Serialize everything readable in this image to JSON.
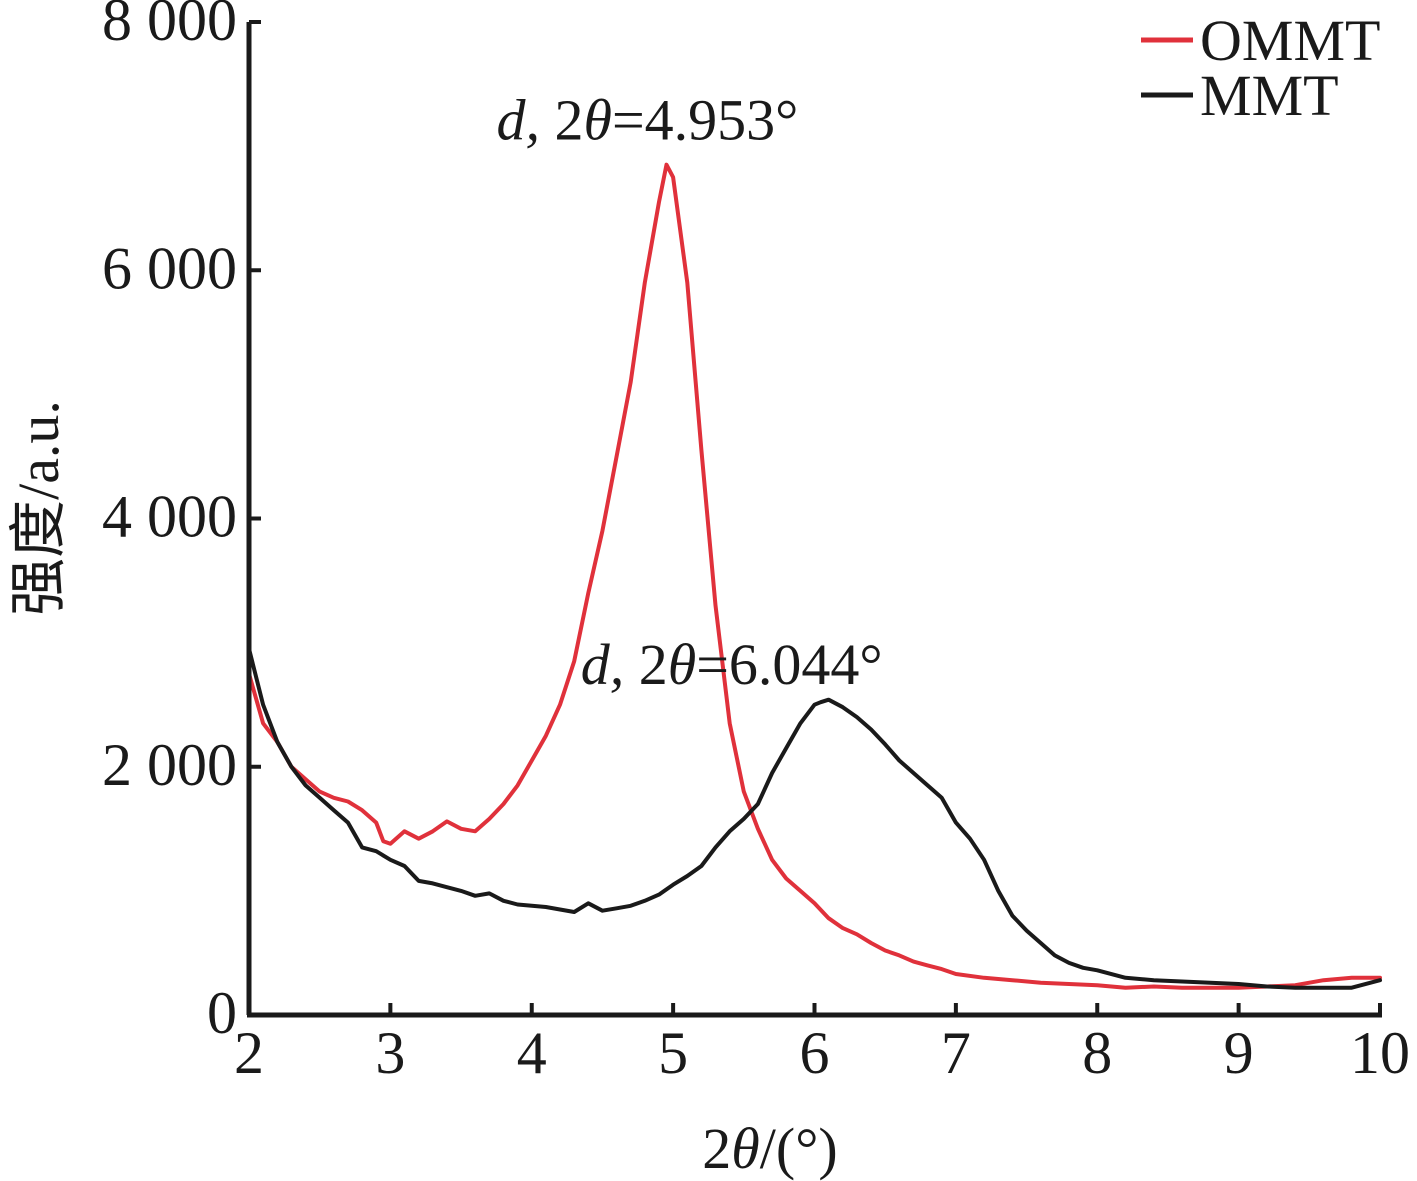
{
  "chart_data": {
    "type": "line",
    "xlabel": "2θ/(°)",
    "ylabel": "强度/a.u.",
    "xlim": [
      2,
      10
    ],
    "ylim": [
      0,
      8000
    ],
    "x_ticks": [
      2,
      3,
      4,
      5,
      6,
      7,
      8,
      9,
      10
    ],
    "x_tick_labels": [
      "2",
      "3",
      "4",
      "5",
      "6",
      "7",
      "8",
      "9",
      "10"
    ],
    "y_ticks": [
      0,
      2000,
      4000,
      6000,
      8000
    ],
    "y_tick_labels": [
      "0",
      "2 000",
      "4 000",
      "6 000",
      "8 000"
    ],
    "grid": false,
    "legend_position": "top-right",
    "series": [
      {
        "name": "OMMT",
        "color": "#e0313b",
        "points": [
          [
            2.0,
            2750
          ],
          [
            2.1,
            2350
          ],
          [
            2.2,
            2200
          ],
          [
            2.3,
            2000
          ],
          [
            2.4,
            1900
          ],
          [
            2.5,
            1800
          ],
          [
            2.6,
            1750
          ],
          [
            2.7,
            1720
          ],
          [
            2.8,
            1650
          ],
          [
            2.9,
            1550
          ],
          [
            2.95,
            1400
          ],
          [
            3.0,
            1380
          ],
          [
            3.1,
            1480
          ],
          [
            3.2,
            1420
          ],
          [
            3.3,
            1480
          ],
          [
            3.4,
            1560
          ],
          [
            3.5,
            1500
          ],
          [
            3.6,
            1480
          ],
          [
            3.7,
            1580
          ],
          [
            3.8,
            1700
          ],
          [
            3.9,
            1850
          ],
          [
            4.0,
            2050
          ],
          [
            4.1,
            2250
          ],
          [
            4.2,
            2500
          ],
          [
            4.3,
            2850
          ],
          [
            4.4,
            3400
          ],
          [
            4.5,
            3900
          ],
          [
            4.6,
            4500
          ],
          [
            4.7,
            5100
          ],
          [
            4.8,
            5900
          ],
          [
            4.9,
            6550
          ],
          [
            4.953,
            6850
          ],
          [
            5.0,
            6750
          ],
          [
            5.1,
            5900
          ],
          [
            5.2,
            4550
          ],
          [
            5.3,
            3300
          ],
          [
            5.4,
            2350
          ],
          [
            5.5,
            1800
          ],
          [
            5.6,
            1500
          ],
          [
            5.7,
            1250
          ],
          [
            5.8,
            1100
          ],
          [
            5.9,
            1000
          ],
          [
            6.0,
            900
          ],
          [
            6.1,
            780
          ],
          [
            6.2,
            700
          ],
          [
            6.3,
            650
          ],
          [
            6.4,
            580
          ],
          [
            6.5,
            520
          ],
          [
            6.6,
            480
          ],
          [
            6.7,
            430
          ],
          [
            6.8,
            400
          ],
          [
            6.9,
            370
          ],
          [
            7.0,
            330
          ],
          [
            7.2,
            300
          ],
          [
            7.4,
            280
          ],
          [
            7.6,
            260
          ],
          [
            7.8,
            250
          ],
          [
            8.0,
            240
          ],
          [
            8.2,
            220
          ],
          [
            8.4,
            230
          ],
          [
            8.6,
            220
          ],
          [
            8.8,
            220
          ],
          [
            9.0,
            220
          ],
          [
            9.2,
            230
          ],
          [
            9.4,
            240
          ],
          [
            9.6,
            280
          ],
          [
            9.8,
            300
          ],
          [
            10.0,
            300
          ]
        ]
      },
      {
        "name": "MMT",
        "color": "#1a1a1a",
        "points": [
          [
            2.0,
            2950
          ],
          [
            2.1,
            2500
          ],
          [
            2.2,
            2200
          ],
          [
            2.3,
            2000
          ],
          [
            2.4,
            1850
          ],
          [
            2.5,
            1750
          ],
          [
            2.6,
            1650
          ],
          [
            2.7,
            1550
          ],
          [
            2.8,
            1350
          ],
          [
            2.9,
            1320
          ],
          [
            3.0,
            1250
          ],
          [
            3.1,
            1200
          ],
          [
            3.2,
            1080
          ],
          [
            3.3,
            1060
          ],
          [
            3.4,
            1030
          ],
          [
            3.5,
            1000
          ],
          [
            3.6,
            960
          ],
          [
            3.7,
            980
          ],
          [
            3.8,
            920
          ],
          [
            3.9,
            890
          ],
          [
            4.0,
            880
          ],
          [
            4.1,
            870
          ],
          [
            4.2,
            850
          ],
          [
            4.3,
            830
          ],
          [
            4.4,
            900
          ],
          [
            4.5,
            840
          ],
          [
            4.6,
            860
          ],
          [
            4.7,
            880
          ],
          [
            4.8,
            920
          ],
          [
            4.9,
            970
          ],
          [
            5.0,
            1050
          ],
          [
            5.1,
            1120
          ],
          [
            5.2,
            1200
          ],
          [
            5.3,
            1350
          ],
          [
            5.4,
            1480
          ],
          [
            5.5,
            1580
          ],
          [
            5.6,
            1700
          ],
          [
            5.7,
            1950
          ],
          [
            5.8,
            2150
          ],
          [
            5.9,
            2350
          ],
          [
            6.0,
            2500
          ],
          [
            6.044,
            2520
          ],
          [
            6.1,
            2540
          ],
          [
            6.2,
            2480
          ],
          [
            6.3,
            2400
          ],
          [
            6.4,
            2300
          ],
          [
            6.5,
            2180
          ],
          [
            6.6,
            2050
          ],
          [
            6.7,
            1950
          ],
          [
            6.8,
            1850
          ],
          [
            6.9,
            1750
          ],
          [
            7.0,
            1550
          ],
          [
            7.1,
            1420
          ],
          [
            7.2,
            1250
          ],
          [
            7.3,
            1000
          ],
          [
            7.4,
            800
          ],
          [
            7.5,
            680
          ],
          [
            7.6,
            580
          ],
          [
            7.7,
            480
          ],
          [
            7.8,
            420
          ],
          [
            7.9,
            380
          ],
          [
            8.0,
            360
          ],
          [
            8.2,
            300
          ],
          [
            8.4,
            280
          ],
          [
            8.6,
            270
          ],
          [
            8.8,
            260
          ],
          [
            9.0,
            250
          ],
          [
            9.2,
            230
          ],
          [
            9.4,
            220
          ],
          [
            9.6,
            220
          ],
          [
            9.8,
            220
          ],
          [
            10.0,
            280
          ]
        ]
      }
    ],
    "annotations": [
      {
        "text_italic": "d,",
        "text_number": "2",
        "text_symbol": "θ",
        "text_value": "=4.953°",
        "x": 4.953,
        "y": 6850
      },
      {
        "text_italic": "d,",
        "text_number": "2",
        "text_symbol": "θ",
        "text_value": "=6.044°",
        "x": 6.044,
        "y": 2520
      }
    ]
  }
}
